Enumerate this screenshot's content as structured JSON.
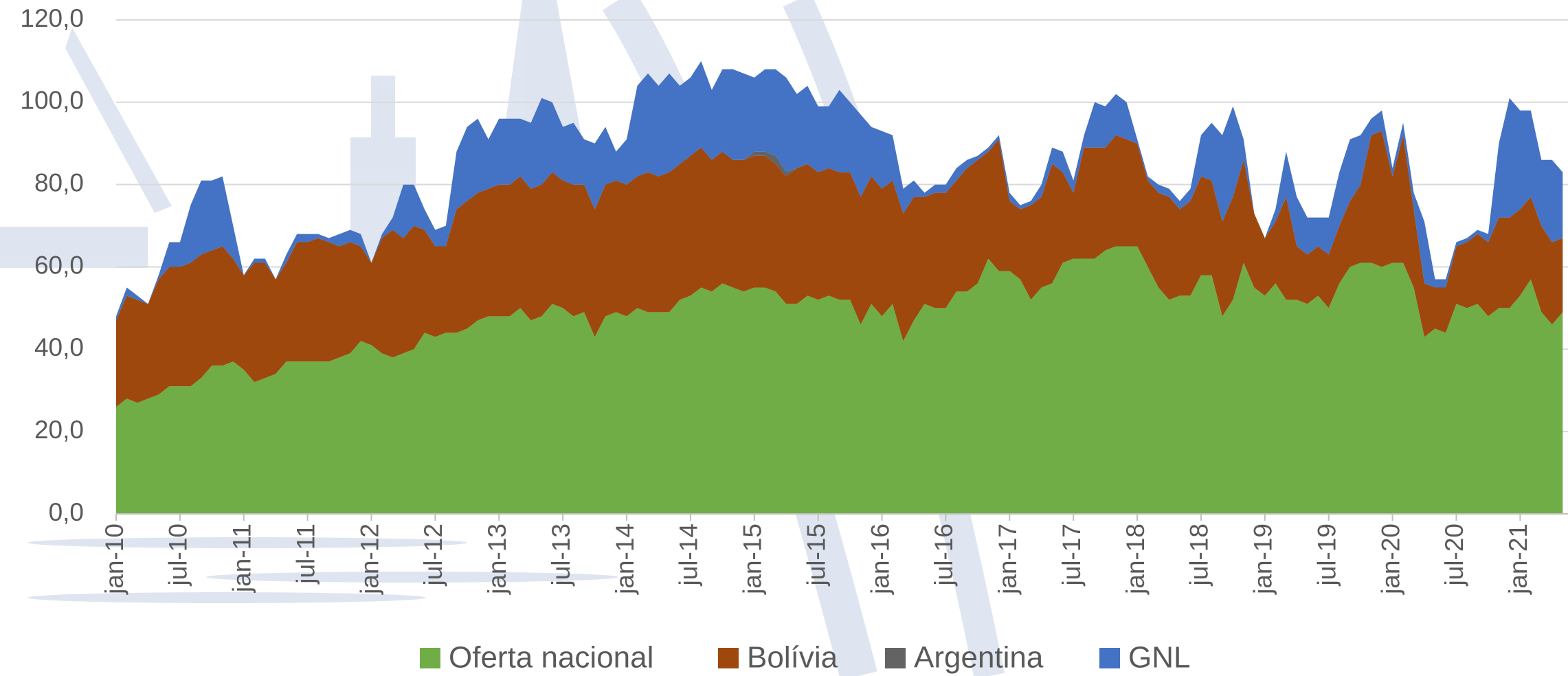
{
  "chart_data": {
    "type": "stacked_area",
    "categories": [
      "jan-10",
      null,
      null,
      null,
      null,
      null,
      "jul-10",
      null,
      null,
      null,
      null,
      null,
      "jan-11",
      null,
      null,
      null,
      null,
      null,
      "jul-11",
      null,
      null,
      null,
      null,
      null,
      "jan-12",
      null,
      null,
      null,
      null,
      null,
      "jul-12",
      null,
      null,
      null,
      null,
      null,
      "jan-13",
      null,
      null,
      null,
      null,
      null,
      "jul-13",
      null,
      null,
      null,
      null,
      null,
      "jan-14",
      null,
      null,
      null,
      null,
      null,
      "jul-14",
      null,
      null,
      null,
      null,
      null,
      "jan-15",
      null,
      null,
      null,
      null,
      null,
      "jul-15",
      null,
      null,
      null,
      null,
      null,
      "jan-16",
      null,
      null,
      null,
      null,
      null,
      "jul-16",
      null,
      null,
      null,
      null,
      null,
      "jan-17",
      null,
      null,
      null,
      null,
      null,
      "jul-17",
      null,
      null,
      null,
      null,
      null,
      "jan-18",
      null,
      null,
      null,
      null,
      null,
      "jul-18",
      null,
      null,
      null,
      null,
      null,
      "jan-19",
      null,
      null,
      null,
      null,
      null,
      "jul-19",
      null,
      null,
      null,
      null,
      null,
      "jan-20",
      null,
      null,
      null,
      null,
      null,
      "jul-20",
      null,
      null,
      null,
      null,
      null,
      "jan-21",
      null,
      null,
      null,
      null
    ],
    "series": [
      {
        "name": "Oferta nacional",
        "color": "#70ad47",
        "values": [
          26,
          28,
          27,
          28,
          29,
          31,
          31,
          31,
          33,
          36,
          36,
          37,
          35,
          32,
          33,
          34,
          37,
          37,
          37,
          37,
          37,
          38,
          39,
          42,
          41,
          39,
          38,
          39,
          40,
          44,
          43,
          44,
          44,
          45,
          47,
          48,
          48,
          48,
          50,
          47,
          48,
          51,
          50,
          48,
          49,
          43,
          48,
          49,
          48,
          50,
          49,
          49,
          49,
          52,
          53,
          55,
          54,
          56,
          55,
          54,
          55,
          55,
          54,
          51,
          51,
          53,
          52,
          53,
          52,
          52,
          46,
          51,
          48,
          51,
          42,
          47,
          51,
          50,
          50,
          54,
          54,
          56,
          62,
          59,
          59,
          57,
          52,
          55,
          56,
          61,
          62,
          62,
          62,
          64,
          65,
          65,
          65,
          60,
          55,
          52,
          53,
          53,
          58,
          58,
          48,
          52,
          61,
          55,
          53,
          56,
          52,
          52,
          51,
          53,
          50,
          56,
          60,
          61,
          61,
          60,
          61,
          61,
          55,
          43,
          45,
          44,
          51,
          50,
          51,
          48,
          50,
          50,
          53,
          57,
          49,
          46,
          49
        ]
      },
      {
        "name": "Bolívia",
        "color": "#9e480e",
        "values": [
          21,
          25,
          25,
          23,
          28,
          29,
          29,
          30,
          30,
          28,
          29,
          25,
          23,
          29,
          28,
          23,
          24,
          29,
          29,
          30,
          29,
          27,
          27,
          23,
          20,
          28,
          31,
          28,
          30,
          25,
          22,
          21,
          30,
          31,
          31,
          31,
          32,
          32,
          32,
          32,
          32,
          32,
          31,
          32,
          31,
          31,
          32,
          32,
          32,
          32,
          34,
          33,
          34,
          33,
          34,
          34,
          32,
          32,
          31,
          32,
          32,
          32,
          31,
          31,
          33,
          32,
          31,
          31,
          31,
          31,
          31,
          31,
          31,
          30,
          31,
          30,
          26,
          28,
          28,
          27,
          30,
          30,
          26,
          32,
          17,
          17,
          23,
          22,
          29,
          22,
          16,
          27,
          27,
          25,
          27,
          26,
          25,
          21,
          23,
          25,
          21,
          23,
          24,
          23,
          23,
          25,
          25,
          18,
          14,
          15,
          25,
          13,
          12,
          12,
          13,
          14,
          16,
          19,
          31,
          33,
          21,
          31,
          19,
          13,
          10,
          11,
          14,
          16,
          17,
          18,
          22,
          22,
          21,
          20,
          21,
          20,
          18
        ]
      },
      {
        "name": "Argentina",
        "color": "#636363",
        "values": [
          0,
          0,
          0,
          0,
          0,
          0,
          0,
          0,
          0,
          0,
          0,
          0,
          0,
          0,
          0,
          0,
          0,
          0,
          0,
          0,
          0,
          0,
          0,
          0,
          0,
          0,
          0,
          0,
          0,
          0,
          0,
          0,
          0,
          0,
          0,
          0,
          0,
          0,
          0,
          0,
          0,
          0,
          0,
          0,
          0,
          0,
          0,
          0,
          0,
          0,
          0,
          0,
          0,
          0,
          0,
          0,
          0,
          0,
          0,
          0,
          1,
          1,
          2,
          1,
          0,
          0,
          0,
          0,
          0,
          0,
          0,
          0,
          0,
          0,
          0,
          0,
          0,
          0,
          0,
          0,
          0,
          0,
          0,
          0,
          0,
          0,
          0,
          0,
          0,
          0,
          0,
          0,
          0,
          0,
          0,
          0,
          0,
          0,
          0,
          0,
          0,
          0,
          0,
          0,
          0,
          0,
          0,
          0,
          0,
          0,
          0,
          0,
          0,
          0,
          0,
          0,
          0,
          0,
          0,
          0,
          0,
          0,
          0,
          0,
          0,
          0,
          0,
          0,
          0,
          0,
          0,
          0,
          0,
          0,
          0,
          0,
          0
        ]
      },
      {
        "name": "GNL",
        "color": "#4472c4",
        "values": [
          1,
          2,
          1,
          0,
          1,
          6,
          6,
          14,
          18,
          17,
          17,
          8,
          0,
          1,
          1,
          0,
          2,
          2,
          2,
          1,
          1,
          3,
          3,
          3,
          0,
          1,
          3,
          13,
          10,
          5,
          4,
          5,
          14,
          18,
          18,
          12,
          16,
          16,
          14,
          16,
          21,
          17,
          13,
          15,
          11,
          16,
          14,
          7,
          11,
          22,
          24,
          22,
          24,
          19,
          19,
          21,
          17,
          20,
          22,
          21,
          18,
          20,
          21,
          23,
          18,
          19,
          16,
          15,
          20,
          17,
          20,
          12,
          14,
          11,
          6,
          4,
          1,
          2,
          2,
          3,
          2,
          1,
          1,
          1,
          2,
          1,
          1,
          3,
          4,
          5,
          3,
          3,
          11,
          10,
          10,
          9,
          1,
          1,
          2,
          2,
          2,
          3,
          10,
          14,
          21,
          22,
          5,
          0,
          0,
          3,
          11,
          12,
          9,
          7,
          9,
          13,
          15,
          12,
          4,
          5,
          2,
          3,
          4,
          15,
          2,
          2,
          1,
          1,
          1,
          2,
          18,
          29,
          24,
          21,
          16,
          20,
          16
        ]
      }
    ],
    "ylim": [
      0,
      120
    ],
    "yticks": [
      {
        "value": 0,
        "label": "0,0"
      },
      {
        "value": 20,
        "label": "20,0"
      },
      {
        "value": 40,
        "label": "40,0"
      },
      {
        "value": 60,
        "label": "60,0"
      },
      {
        "value": 80,
        "label": "80,0"
      },
      {
        "value": 100,
        "label": "100,0"
      },
      {
        "value": 120,
        "label": "120,0"
      }
    ],
    "grid": true,
    "legend": "bottom"
  }
}
